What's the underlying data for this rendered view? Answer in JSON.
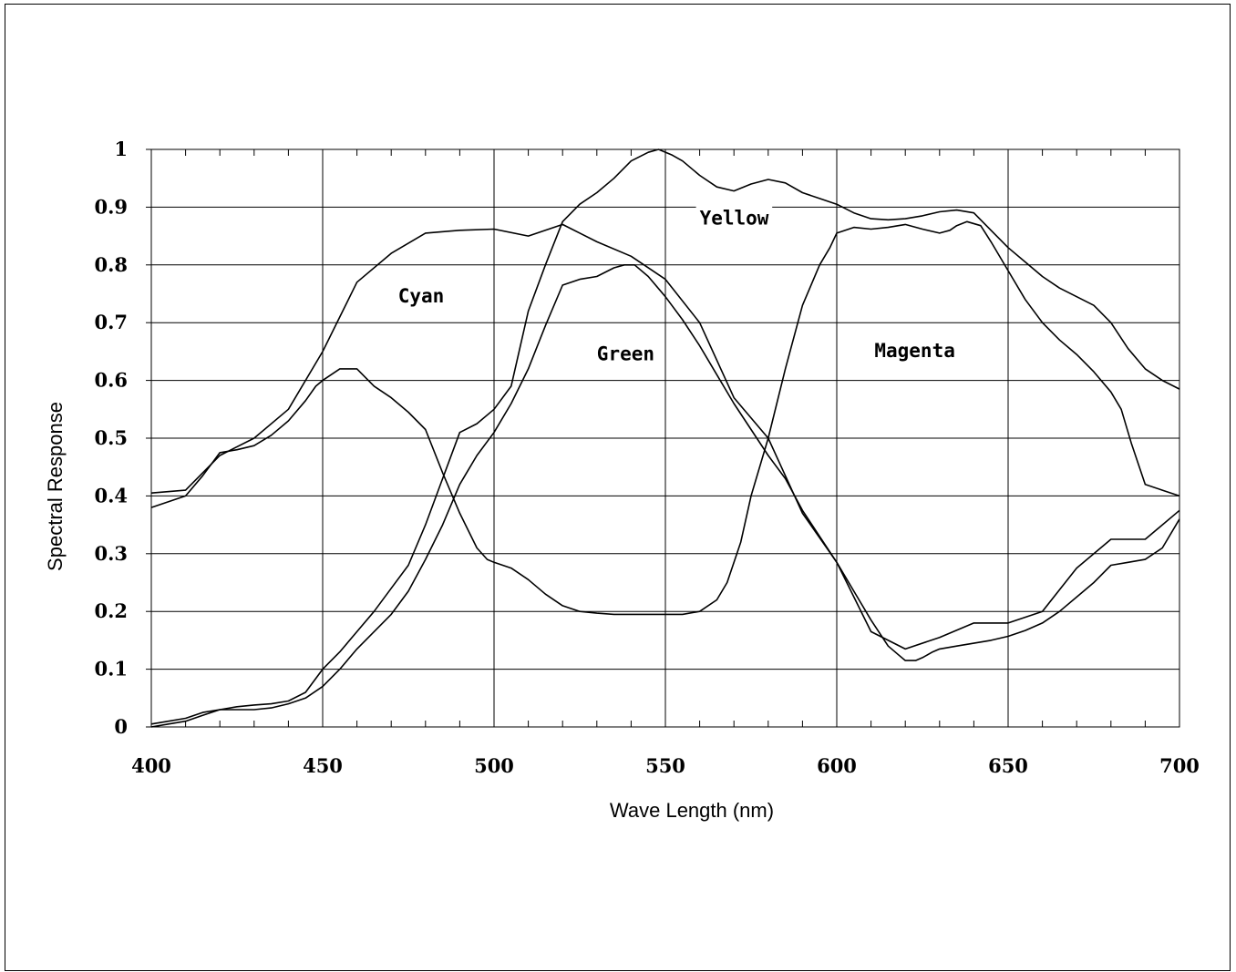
{
  "chart_data": {
    "type": "line",
    "xlabel": "Wave Length (nm)",
    "ylabel": "Spectral Response",
    "xlim": [
      400,
      700
    ],
    "ylim": [
      0,
      1
    ],
    "xticks": [
      "400",
      "450",
      "500",
      "550",
      "600",
      "650",
      "700"
    ],
    "yticks": [
      "0",
      "0.1",
      "0.2",
      "0.3",
      "0.4",
      "0.5",
      "0.6",
      "0.7",
      "0.8",
      "0.9",
      "1"
    ],
    "grid": true,
    "legend": "none",
    "series": [
      {
        "name": "Cyan",
        "x": [
          400,
          410,
          420,
          430,
          440,
          450,
          455,
          460,
          470,
          480,
          490,
          500,
          510,
          520,
          530,
          540,
          550,
          560,
          570,
          580,
          590,
          600,
          610,
          620,
          630,
          640,
          650,
          660,
          670,
          680,
          690,
          700
        ],
        "y": [
          0.405,
          0.41,
          0.47,
          0.5,
          0.55,
          0.65,
          0.71,
          0.77,
          0.82,
          0.855,
          0.86,
          0.862,
          0.85,
          0.87,
          0.84,
          0.815,
          0.775,
          0.7,
          0.57,
          0.5,
          0.37,
          0.285,
          0.165,
          0.135,
          0.155,
          0.18,
          0.18,
          0.2,
          0.275,
          0.325,
          0.325,
          0.375
        ]
      },
      {
        "name": "Green",
        "x": [
          400,
          405,
          410,
          415,
          420,
          430,
          435,
          440,
          445,
          450,
          455,
          460,
          465,
          470,
          475,
          480,
          485,
          490,
          495,
          500,
          505,
          510,
          515,
          520,
          525,
          530,
          535,
          538,
          541,
          545,
          550,
          555,
          560,
          565,
          570,
          575,
          580,
          585,
          590,
          595,
          600,
          605,
          610,
          615,
          618,
          620,
          623,
          625,
          628,
          630,
          635,
          640,
          645,
          650,
          655,
          660,
          665,
          670,
          675,
          680,
          685,
          690,
          695,
          700
        ],
        "y": [
          0.0,
          0.005,
          0.01,
          0.02,
          0.03,
          0.03,
          0.033,
          0.04,
          0.05,
          0.07,
          0.1,
          0.135,
          0.165,
          0.195,
          0.235,
          0.29,
          0.35,
          0.42,
          0.47,
          0.51,
          0.56,
          0.62,
          0.695,
          0.765,
          0.775,
          0.78,
          0.795,
          0.8,
          0.8,
          0.78,
          0.745,
          0.705,
          0.66,
          0.61,
          0.56,
          0.515,
          0.47,
          0.43,
          0.375,
          0.33,
          0.285,
          0.235,
          0.185,
          0.14,
          0.125,
          0.115,
          0.115,
          0.12,
          0.13,
          0.135,
          0.14,
          0.145,
          0.15,
          0.157,
          0.167,
          0.18,
          0.2,
          0.225,
          0.25,
          0.28,
          0.285,
          0.29,
          0.31,
          0.36
        ]
      },
      {
        "name": "Yellow",
        "x": [
          400,
          405,
          410,
          415,
          420,
          425,
          430,
          435,
          440,
          445,
          450,
          455,
          460,
          465,
          470,
          475,
          480,
          485,
          490,
          495,
          500,
          505,
          510,
          515,
          520,
          525,
          530,
          535,
          540,
          545,
          548,
          552,
          555,
          560,
          565,
          570,
          575,
          580,
          585,
          590,
          595,
          600,
          605,
          610,
          615,
          620,
          625,
          630,
          635,
          640,
          645,
          650,
          655,
          660,
          665,
          670,
          675,
          680,
          685,
          690,
          695,
          700
        ],
        "y": [
          0.005,
          0.01,
          0.015,
          0.025,
          0.03,
          0.035,
          0.038,
          0.04,
          0.045,
          0.06,
          0.1,
          0.13,
          0.165,
          0.2,
          0.24,
          0.28,
          0.35,
          0.43,
          0.51,
          0.525,
          0.55,
          0.59,
          0.72,
          0.8,
          0.875,
          0.905,
          0.925,
          0.95,
          0.98,
          0.995,
          1.0,
          0.99,
          0.98,
          0.955,
          0.935,
          0.928,
          0.94,
          0.948,
          0.942,
          0.925,
          0.915,
          0.905,
          0.89,
          0.88,
          0.878,
          0.88,
          0.885,
          0.892,
          0.895,
          0.89,
          0.86,
          0.83,
          0.805,
          0.78,
          0.76,
          0.745,
          0.73,
          0.7,
          0.655,
          0.62,
          0.6,
          0.585
        ]
      },
      {
        "name": "Magenta",
        "x": [
          400,
          405,
          410,
          415,
          420,
          425,
          430,
          435,
          440,
          445,
          448,
          450,
          455,
          460,
          465,
          470,
          475,
          480,
          485,
          490,
          495,
          498,
          500,
          505,
          510,
          515,
          520,
          525,
          530,
          535,
          540,
          545,
          550,
          555,
          560,
          565,
          568,
          572,
          575,
          580,
          585,
          590,
          595,
          598,
          600,
          605,
          610,
          615,
          620,
          625,
          630,
          633,
          635,
          638,
          642,
          645,
          650,
          655,
          660,
          665,
          670,
          675,
          680,
          683,
          686,
          690,
          695,
          700
        ],
        "y": [
          0.38,
          0.39,
          0.4,
          0.435,
          0.475,
          0.48,
          0.487,
          0.505,
          0.53,
          0.565,
          0.59,
          0.6,
          0.62,
          0.62,
          0.59,
          0.57,
          0.545,
          0.515,
          0.44,
          0.37,
          0.31,
          0.29,
          0.285,
          0.275,
          0.255,
          0.23,
          0.21,
          0.2,
          0.197,
          0.195,
          0.195,
          0.195,
          0.195,
          0.195,
          0.2,
          0.22,
          0.25,
          0.32,
          0.4,
          0.5,
          0.62,
          0.73,
          0.8,
          0.83,
          0.855,
          0.865,
          0.862,
          0.865,
          0.87,
          0.862,
          0.855,
          0.86,
          0.868,
          0.875,
          0.868,
          0.84,
          0.79,
          0.74,
          0.7,
          0.67,
          0.645,
          0.615,
          0.58,
          0.55,
          0.49,
          0.42,
          0.41,
          0.4
        ]
      }
    ],
    "annotations": [
      {
        "text": "Cyan",
        "x": 472,
        "y": 0.735
      },
      {
        "text": "Green",
        "x": 530,
        "y": 0.635
      },
      {
        "text": "Yellow",
        "x": 560,
        "y": 0.87
      },
      {
        "text": "Magenta",
        "x": 611,
        "y": 0.64
      }
    ]
  }
}
